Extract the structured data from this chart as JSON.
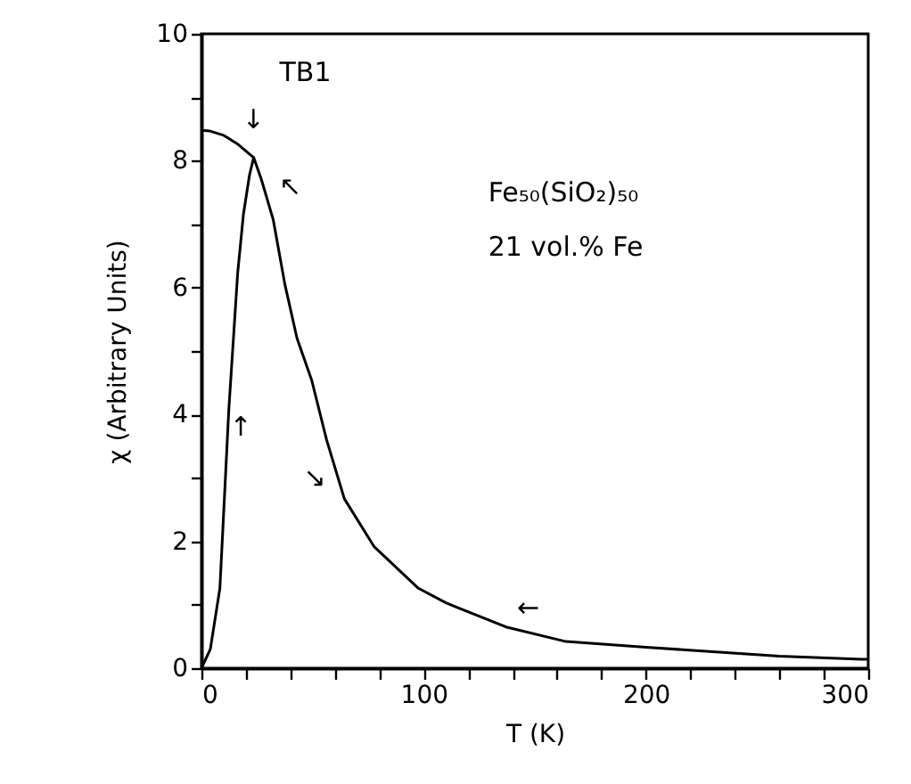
{
  "chart_data": {
    "type": "line",
    "xlabel": "T (K)",
    "ylabel": "χ (Arbitrary Units)",
    "xlim": [
      0,
      300
    ],
    "ylim": [
      0,
      10
    ],
    "xticks": [
      0,
      {
        "value": 20,
        "label": null
      },
      {
        "value": 40,
        "label": null
      },
      {
        "value": 60,
        "label": null
      },
      {
        "value": 80,
        "label": null
      },
      100,
      {
        "value": 120,
        "label": null
      },
      {
        "value": 140,
        "label": null
      },
      {
        "value": 160,
        "label": null
      },
      {
        "value": 180,
        "label": null
      },
      200,
      {
        "value": 220,
        "label": null
      },
      {
        "value": 240,
        "label": null
      },
      {
        "value": 260,
        "label": null
      },
      {
        "value": 280,
        "label": null
      },
      300
    ],
    "yticks": [
      0,
      {
        "value": 1,
        "label": null
      },
      2,
      {
        "value": 3,
        "label": null
      },
      4,
      {
        "value": 5,
        "label": null
      },
      6,
      {
        "value": 7,
        "label": null
      },
      8,
      {
        "value": 9,
        "label": null
      },
      10
    ],
    "grid": false,
    "marker": "none",
    "line_style": "solid",
    "series": [
      {
        "color": "#000000",
        "x": [
          0,
          4,
          8.3,
          12.3,
          16.3,
          18.9,
          21.6,
          23.5,
          27,
          32.3,
          37.6,
          43,
          49.6,
          56.3,
          64.3,
          77.6,
          97.6,
          110,
          137,
          164,
          200,
          260,
          297,
          300
        ],
        "values": [
          0,
          0.3,
          1.26,
          4.07,
          6.23,
          7.16,
          7.77,
          8.05,
          7.7,
          7.07,
          6.04,
          5.2,
          4.54,
          3.6,
          2.67,
          1.92,
          1.26,
          1.03,
          0.65,
          0.42,
          0.33,
          0.19,
          0.14,
          0.14
        ]
      },
      {
        "color": "#000000",
        "x": [
          0,
          3.5,
          10,
          16,
          23.5
        ],
        "values": [
          8.48,
          8.47,
          8.4,
          8.27,
          8.05
        ]
      }
    ],
    "annotations": [
      "TB1",
      "↓",
      "↖",
      "↑",
      "↘",
      "←",
      "Fe₅₀(SiO₂)₅₀",
      "21 vol.% Fe"
    ]
  }
}
